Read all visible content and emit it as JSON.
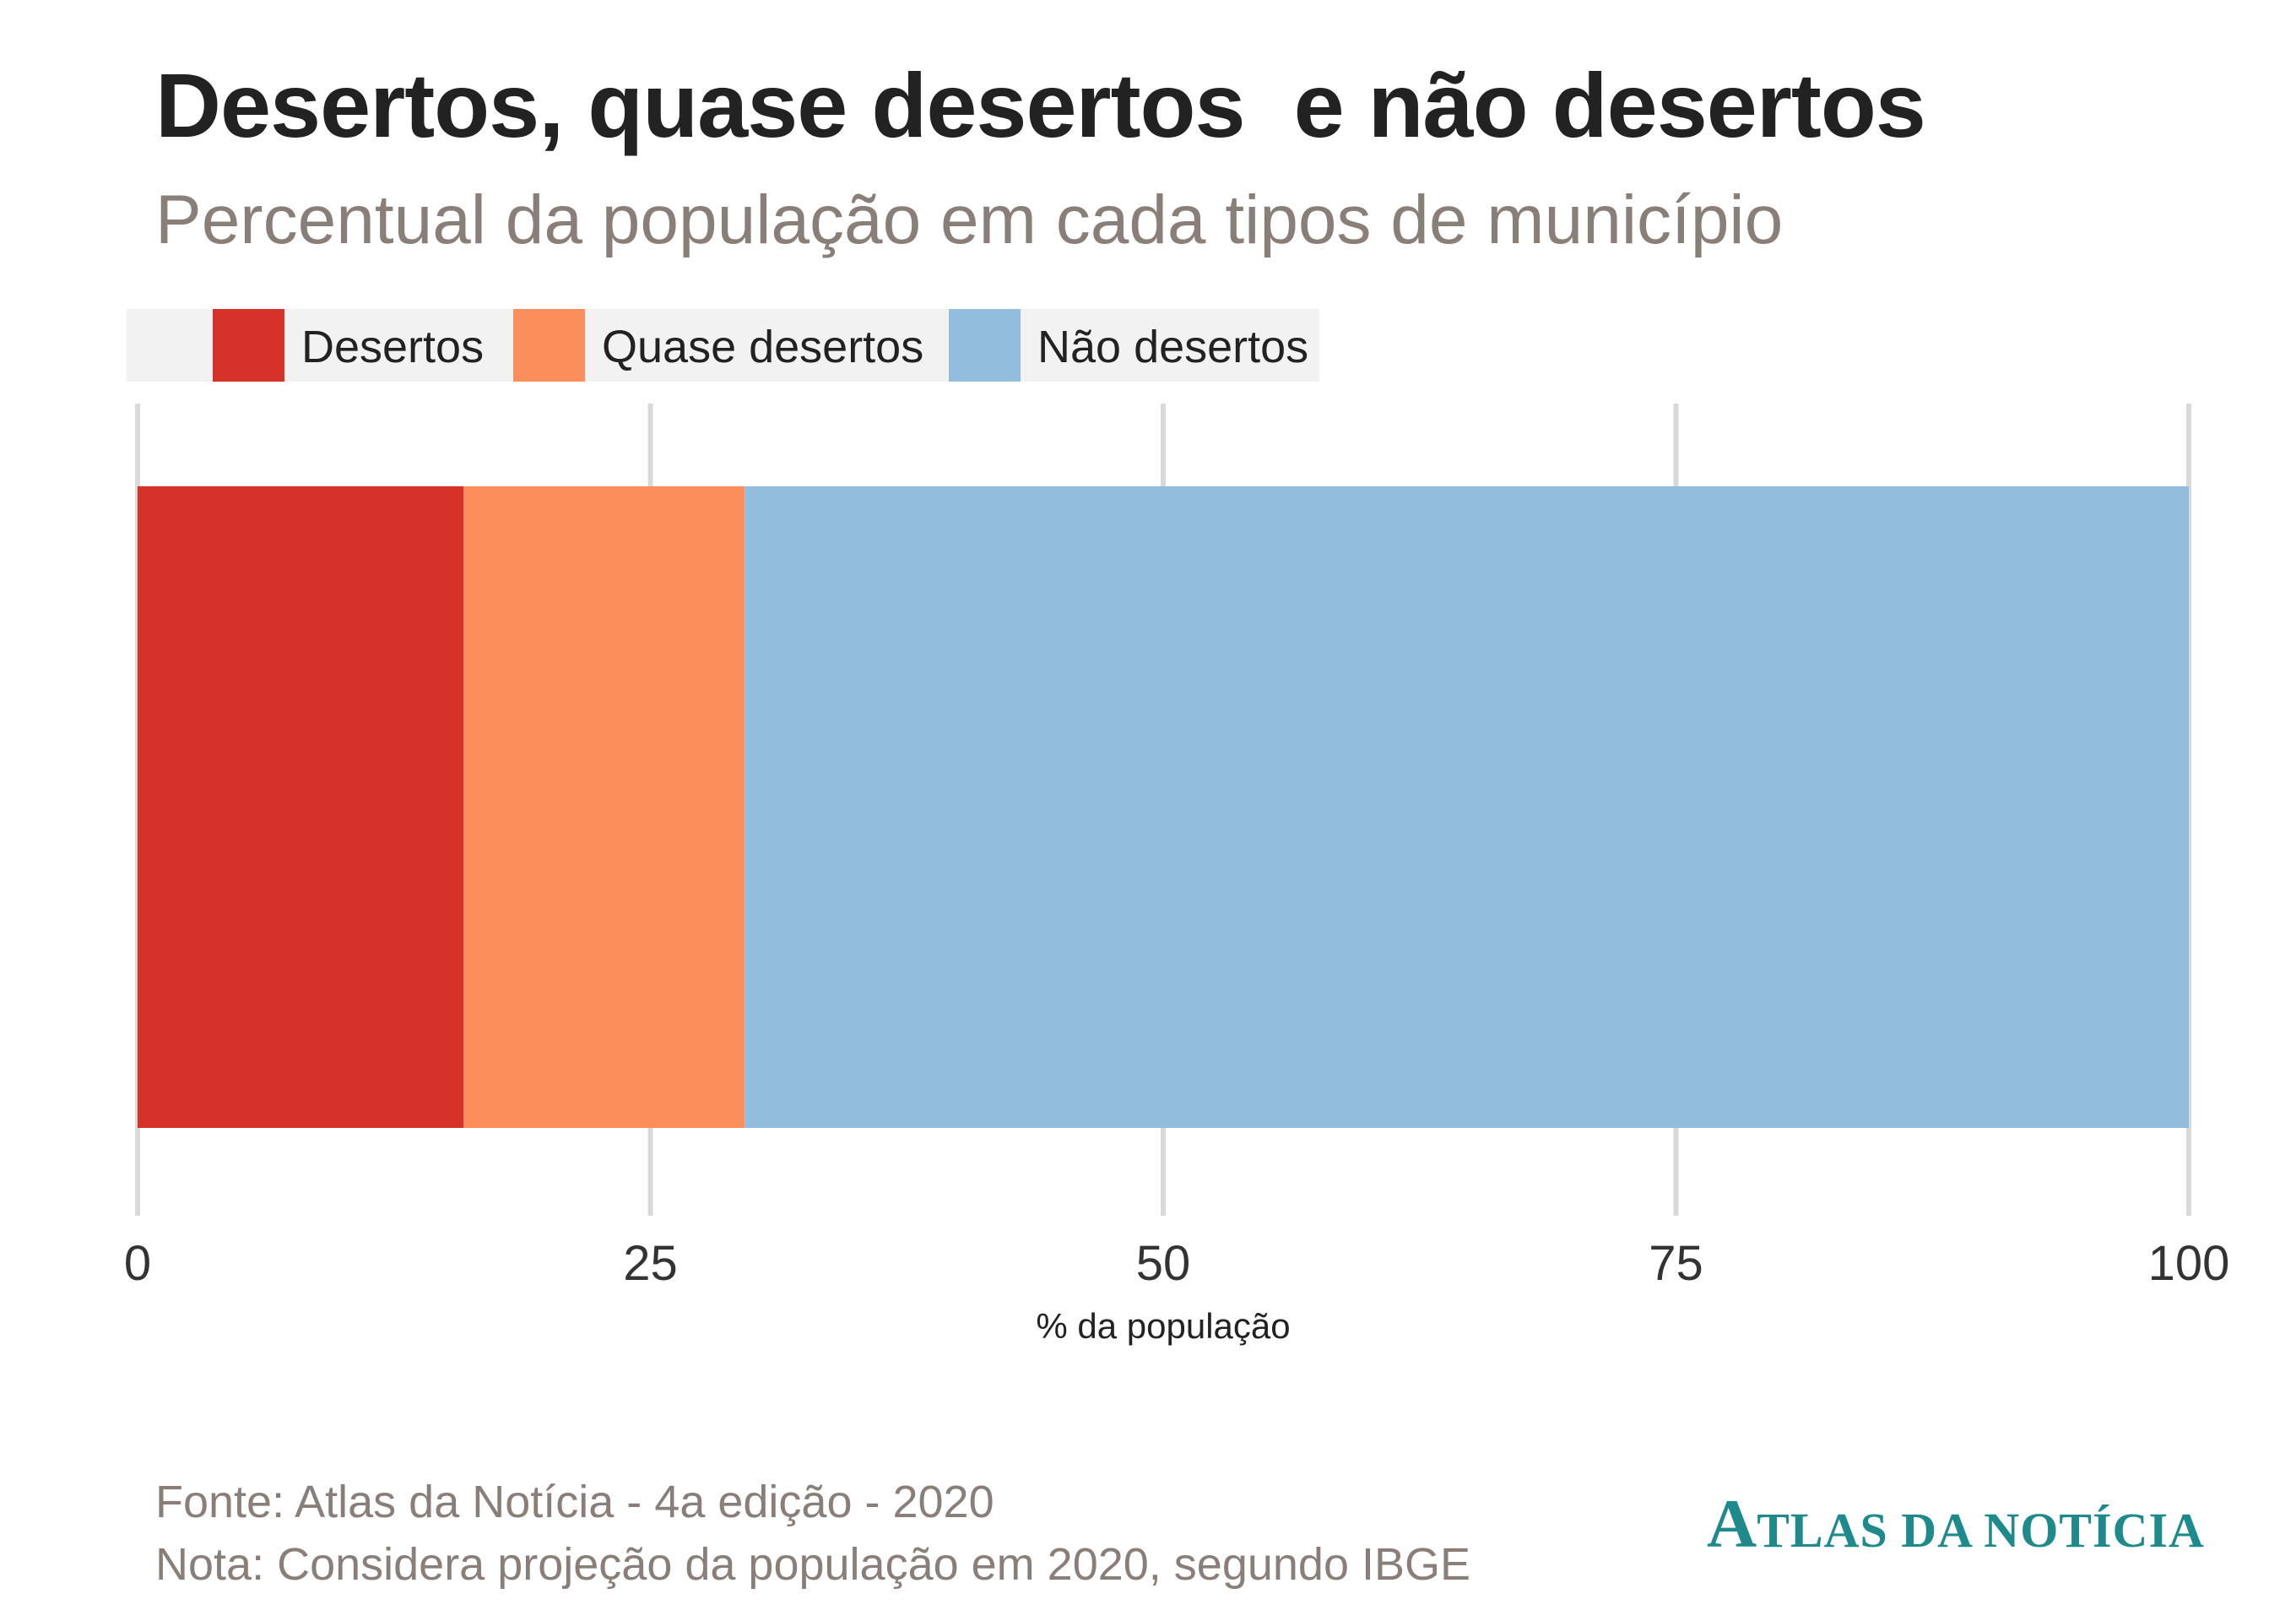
{
  "title": "Desertos, quase desertos  e não desertos",
  "subtitle": "Percentual da população em cada tipos de município",
  "colors": {
    "desertos": "#d7322a",
    "quase_desertos": "#fb8e5a",
    "nao_desertos": "#93bddc",
    "grid": "#d9d9d9",
    "legend_bg": "#f2f2f2",
    "logo": "#1f8a8c"
  },
  "chart_data": {
    "type": "bar",
    "orientation": "horizontal",
    "stacked": true,
    "categories": [
      ""
    ],
    "series": [
      {
        "name": "Desertos",
        "values": [
          15.9
        ]
      },
      {
        "name": "Quase desertos",
        "values": [
          13.7
        ]
      },
      {
        "name": "Não desertos",
        "values": [
          70.4
        ]
      }
    ],
    "xlabel": "% da população",
    "ylabel": "",
    "xlim": [
      0,
      100
    ],
    "xticks": [
      "0",
      "25",
      "50",
      "75",
      "100"
    ],
    "grid": true,
    "legend_position": "top-left"
  },
  "footer": {
    "source": "Fonte: Atlas da Notícia - 4a edição - 2020",
    "note": "Nota: Considera projeção da população em 2020, segundo IBGE"
  },
  "logo": {
    "first_letter": "A",
    "rest": "TLAS DA NOTÍCIA"
  }
}
